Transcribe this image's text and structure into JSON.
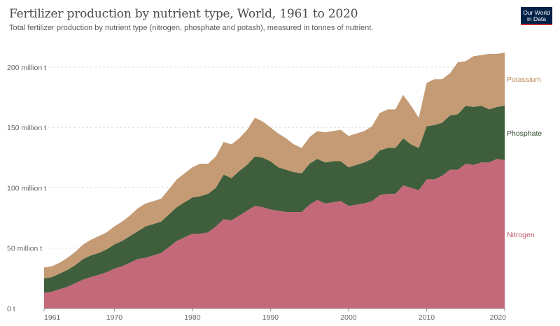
{
  "header": {
    "title": "Fertilizer production by nutrient type, World, 1961 to 2020",
    "subtitle": "Total fertilizer production by nutrient type (nitrogen, phosphate and potash), measured in tonnes of nutrient.",
    "logo_line1": "Our World",
    "logo_line2": "in Data"
  },
  "colors": {
    "nitrogen": "#c4697a",
    "phosphate": "#3f5e3c",
    "potassium": "#c49b74",
    "nitrogen_label": "#c05a6e",
    "phosphate_label": "#2e4d2c",
    "potassium_label": "#b98a5e",
    "brand_bg": "#002147",
    "brand_accent": "#c4272e"
  },
  "chart_data": {
    "type": "area",
    "stacked": true,
    "title": "Fertilizer production by nutrient type, World, 1961 to 2020",
    "subtitle": "Total fertilizer production by nutrient type (nitrogen, phosphate and potash), measured in tonnes of nutrient.",
    "xlabel": "",
    "ylabel": "",
    "x_ticks": [
      1961,
      1970,
      1980,
      1990,
      2000,
      2010,
      2020
    ],
    "y_ticks": [
      {
        "value": 0,
        "label": "0 t"
      },
      {
        "value": 50,
        "label": "50 million t"
      },
      {
        "value": 100,
        "label": "100 million t"
      },
      {
        "value": 150,
        "label": "150 million t"
      },
      {
        "value": 200,
        "label": "200 million t"
      }
    ],
    "xlim": [
      1961,
      2020
    ],
    "ylim": [
      0,
      222
    ],
    "grid": "horizontal dashed",
    "legend": "right, inline labels",
    "x": [
      1961,
      1962,
      1963,
      1964,
      1965,
      1966,
      1967,
      1968,
      1969,
      1970,
      1971,
      1972,
      1973,
      1974,
      1975,
      1976,
      1977,
      1978,
      1979,
      1980,
      1981,
      1982,
      1983,
      1984,
      1985,
      1986,
      1987,
      1988,
      1989,
      1990,
      1991,
      1992,
      1993,
      1994,
      1995,
      1996,
      1997,
      1998,
      1999,
      2000,
      2001,
      2002,
      2003,
      2004,
      2005,
      2006,
      2007,
      2008,
      2009,
      2010,
      2011,
      2012,
      2013,
      2014,
      2015,
      2016,
      2017,
      2018,
      2019,
      2020
    ],
    "series": [
      {
        "name": "Nitrogen",
        "values": [
          13,
          14,
          16,
          18,
          21,
          24,
          26,
          28,
          30,
          33,
          35,
          38,
          41,
          42,
          44,
          46,
          51,
          56,
          59,
          62,
          62,
          63,
          68,
          74,
          73,
          77,
          81,
          85,
          84,
          82,
          81,
          80,
          80,
          80,
          86,
          90,
          87,
          88,
          89,
          85,
          86,
          87,
          89,
          94,
          95,
          95,
          102,
          100,
          98,
          107,
          107,
          110,
          115,
          115,
          120,
          119,
          121,
          121,
          124,
          123
        ]
      },
      {
        "name": "Phosphate",
        "values": [
          12,
          12,
          13,
          14,
          15,
          17,
          18,
          18,
          19,
          20,
          21,
          22,
          23,
          26,
          26,
          26,
          27,
          28,
          29,
          30,
          31,
          32,
          32,
          37,
          35,
          37,
          38,
          41,
          41,
          40,
          36,
          35,
          33,
          32,
          34,
          34,
          34,
          34,
          33,
          32,
          33,
          34,
          35,
          37,
          38,
          38,
          39,
          36,
          35,
          44,
          45,
          44,
          45,
          46,
          48,
          48,
          47,
          44,
          43,
          45
        ]
      },
      {
        "name": "Potassium",
        "values": [
          9,
          9,
          9,
          10,
          11,
          12,
          13,
          14,
          14,
          15,
          16,
          17,
          19,
          19,
          19,
          19,
          21,
          23,
          24,
          25,
          27,
          25,
          26,
          27,
          28,
          27,
          29,
          32,
          30,
          28,
          28,
          26,
          23,
          21,
          22,
          23,
          25,
          25,
          26,
          26,
          26,
          26,
          27,
          31,
          32,
          32,
          36,
          32,
          25,
          36,
          38,
          36,
          35,
          43,
          37,
          42,
          42,
          46,
          44,
          44
        ]
      }
    ]
  }
}
